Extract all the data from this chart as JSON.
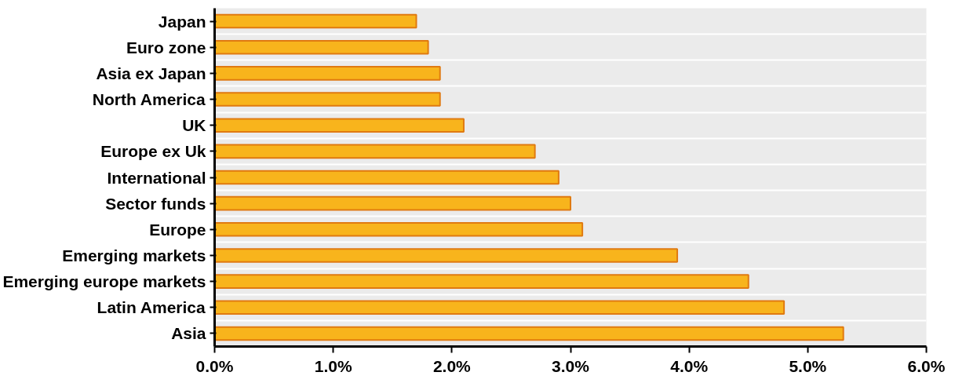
{
  "chart_data": {
    "type": "bar",
    "orientation": "horizontal",
    "categories": [
      "Japan",
      "Euro zone",
      "Asia ex Japan",
      "North America",
      "UK",
      "Europe ex Uk",
      "International",
      "Sector funds",
      "Europe",
      "Emerging markets",
      "Emerging europe markets",
      "Latin America",
      "Asia"
    ],
    "values": [
      1.7,
      1.8,
      1.9,
      1.9,
      2.1,
      2.7,
      2.9,
      3.0,
      3.1,
      3.9,
      4.5,
      4.8,
      5.3
    ],
    "color": "#f8b41c",
    "xlim": [
      0,
      6
    ],
    "xticks": [
      {
        "value": 0,
        "label": "0.0%"
      },
      {
        "value": 1,
        "label": "1.0%"
      },
      {
        "value": 2,
        "label": "2.0%"
      },
      {
        "value": 3,
        "label": "3.0%"
      },
      {
        "value": 4,
        "label": "4.0%"
      },
      {
        "value": 5,
        "label": "5.0%"
      },
      {
        "value": 6,
        "label": "6.0%"
      }
    ],
    "grid": "y"
  }
}
